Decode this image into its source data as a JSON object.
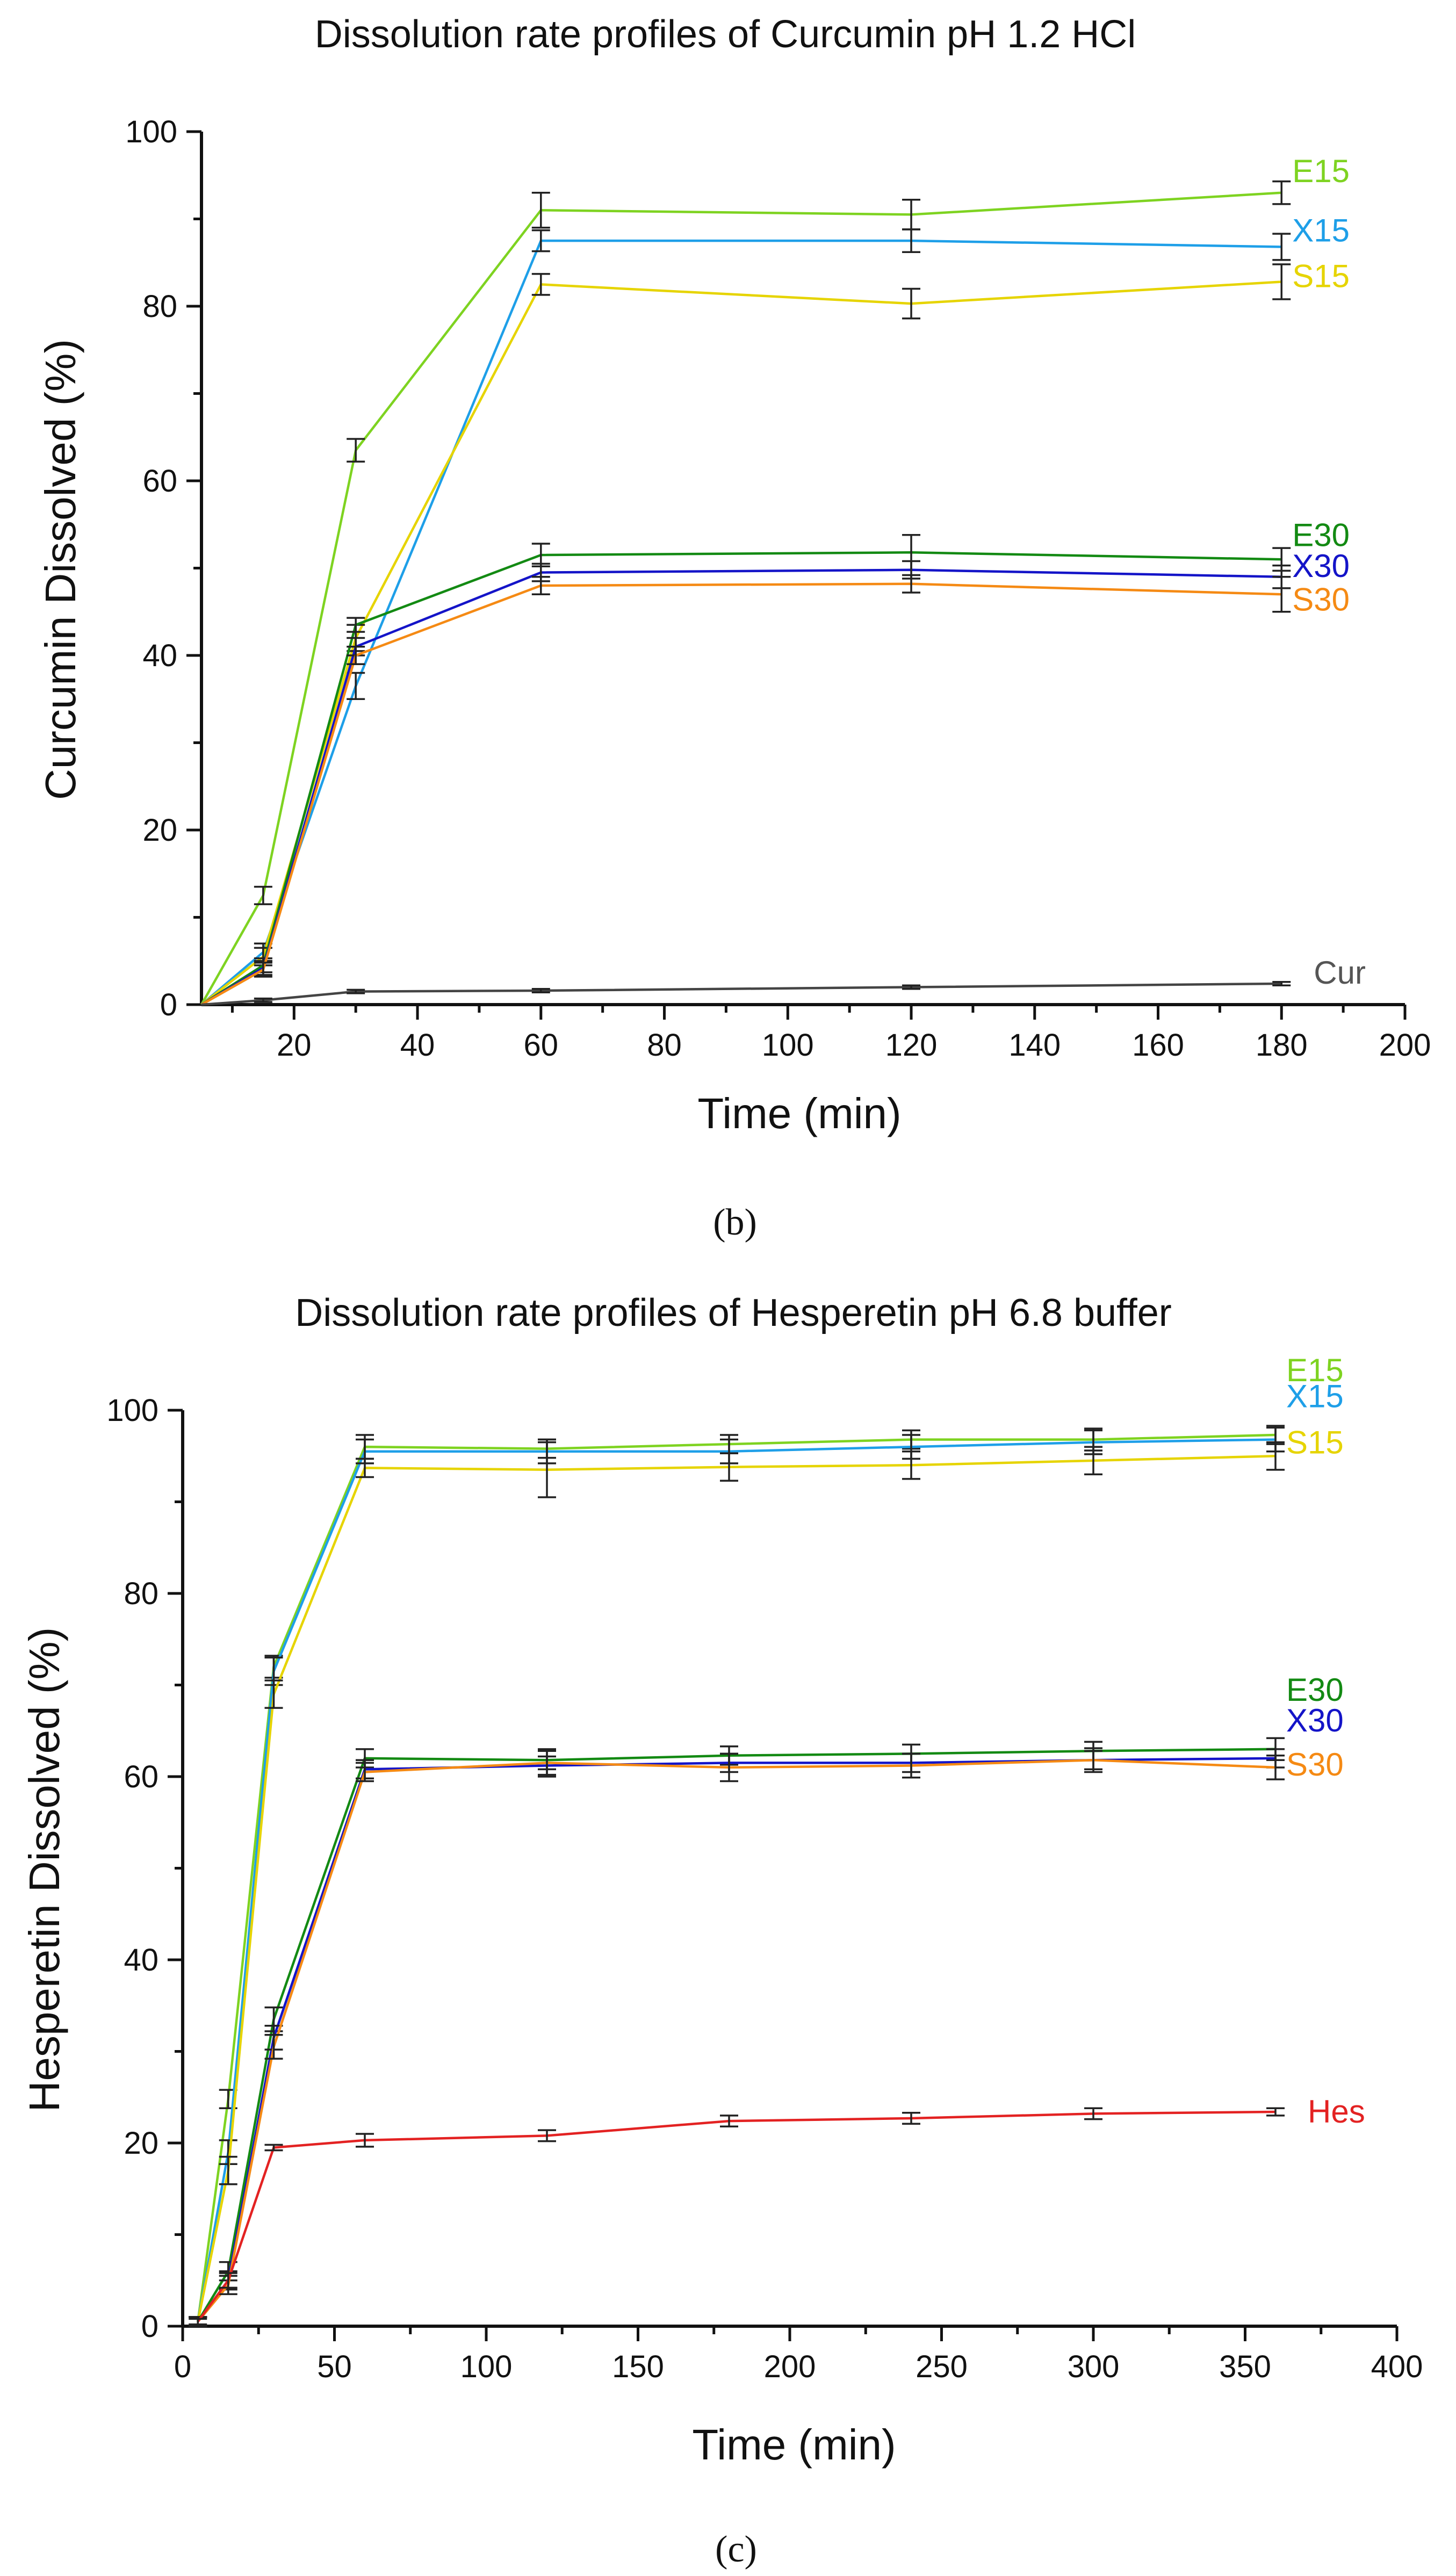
{
  "chart_data": [
    {
      "type": "line",
      "title": "Dissolution rate profiles of Curcumin pH 1.2 HCl",
      "xlabel": "Time (min)",
      "ylabel": "Curcumin Dissolved (%)",
      "panel_label": "(b)",
      "xlim": [
        5,
        200
      ],
      "ylim": [
        0,
        100
      ],
      "xticks": [
        20,
        40,
        60,
        80,
        100,
        120,
        140,
        160,
        180,
        200
      ],
      "yticks": [
        0,
        20,
        40,
        60,
        80,
        100
      ],
      "x": [
        5,
        15,
        30,
        60,
        120,
        180
      ],
      "series": [
        {
          "name": "E15",
          "color": "#7ed321",
          "values": [
            0,
            12.5,
            63.5,
            91.0,
            90.5,
            93.0
          ],
          "errors": [
            0,
            1.0,
            1.3,
            2.0,
            1.7,
            1.3
          ]
        },
        {
          "name": "X15",
          "color": "#1e9fe8",
          "values": [
            0,
            6.0,
            36.5,
            87.5,
            87.5,
            86.8
          ],
          "errors": [
            0,
            1.0,
            1.5,
            1.2,
            1.3,
            1.5
          ]
        },
        {
          "name": "S15",
          "color": "#e6d400",
          "values": [
            0,
            5.5,
            42.0,
            82.5,
            80.3,
            82.8
          ],
          "errors": [
            0,
            1.0,
            1.5,
            1.2,
            1.7,
            2.0
          ]
        },
        {
          "name": "E30",
          "color": "#138a13",
          "values": [
            0,
            4.5,
            43.5,
            51.5,
            51.8,
            51.0
          ],
          "errors": [
            0,
            0.8,
            0.8,
            1.3,
            2.0,
            1.3
          ]
        },
        {
          "name": "X30",
          "color": "#1414c8",
          "values": [
            0,
            4.2,
            41.0,
            49.5,
            49.8,
            49.0
          ],
          "errors": [
            0,
            0.8,
            1.0,
            1.0,
            1.0,
            1.3
          ]
        },
        {
          "name": "S30",
          "color": "#f58a14",
          "values": [
            0,
            4.0,
            40.0,
            48.0,
            48.2,
            47.0
          ],
          "errors": [
            0,
            0.8,
            1.0,
            1.0,
            1.0,
            2.0
          ]
        },
        {
          "name": "Cur",
          "color": "#444444",
          "label_color": "#555555",
          "values": [
            0,
            0.5,
            1.5,
            1.6,
            2.0,
            2.4
          ],
          "errors": [
            0,
            0.2,
            0.2,
            0.2,
            0.2,
            0.2
          ]
        }
      ]
    },
    {
      "type": "line",
      "title": "Dissolution rate profiles of Hesperetin pH 6.8 buffer",
      "xlabel": "Time (min)",
      "ylabel": "Hesperetin Dissolved (%)",
      "panel_label": "(c)",
      "xlim": [
        0,
        400
      ],
      "ylim": [
        0,
        100
      ],
      "xticks": [
        0,
        50,
        100,
        150,
        200,
        250,
        300,
        350,
        400
      ],
      "yticks": [
        0,
        20,
        40,
        60,
        80,
        100
      ],
      "x": [
        5,
        15,
        30,
        60,
        120,
        180,
        240,
        300,
        360
      ],
      "series": [
        {
          "name": "E15",
          "color": "#7ed321",
          "values": [
            0.5,
            24.8,
            72.0,
            96.0,
            95.8,
            96.3,
            96.8,
            96.8,
            97.3
          ],
          "errors": [
            0.5,
            1.0,
            1.2,
            1.3,
            1.0,
            1.0,
            1.0,
            1.2,
            1.0
          ]
        },
        {
          "name": "X15",
          "color": "#1e9fe8",
          "values": [
            0.5,
            19.0,
            71.5,
            95.5,
            95.5,
            95.5,
            96.0,
            96.5,
            96.8
          ],
          "errors": [
            0.5,
            1.3,
            1.5,
            1.3,
            1.3,
            1.3,
            1.3,
            1.3,
            1.3
          ]
        },
        {
          "name": "S15",
          "color": "#e6d400",
          "values": [
            0.5,
            17.0,
            69.0,
            93.7,
            93.5,
            93.8,
            94.0,
            94.5,
            95.0
          ],
          "errors": [
            0.5,
            1.5,
            1.5,
            1.0,
            3.0,
            1.5,
            1.5,
            1.5,
            1.5
          ]
        },
        {
          "name": "E30",
          "color": "#138a13",
          "values": [
            0.5,
            6.0,
            33.5,
            62.0,
            61.8,
            62.3,
            62.5,
            62.8,
            63.0
          ],
          "errors": [
            0.5,
            1.0,
            1.3,
            1.0,
            1.0,
            1.0,
            1.0,
            1.0,
            1.2
          ]
        },
        {
          "name": "X30",
          "color": "#1414c8",
          "values": [
            0.5,
            5.0,
            31.5,
            60.8,
            61.2,
            61.5,
            61.5,
            61.8,
            62.0
          ],
          "errors": [
            0.5,
            1.0,
            1.3,
            1.0,
            1.0,
            1.0,
            1.0,
            1.0,
            1.0
          ]
        },
        {
          "name": "S30",
          "color": "#f58a14",
          "values": [
            0.5,
            4.5,
            30.5,
            60.5,
            61.5,
            61.0,
            61.2,
            61.8,
            61.0
          ],
          "errors": [
            0.5,
            1.0,
            1.3,
            1.0,
            1.5,
            1.5,
            1.3,
            1.3,
            1.3
          ]
        },
        {
          "name": "Hes",
          "color": "#e32222",
          "values": [
            0.5,
            5.0,
            19.5,
            20.3,
            20.8,
            22.4,
            22.7,
            23.2,
            23.4
          ],
          "errors": [
            0.3,
            0.8,
            0.3,
            0.7,
            0.6,
            0.6,
            0.6,
            0.6,
            0.4
          ]
        }
      ]
    }
  ]
}
